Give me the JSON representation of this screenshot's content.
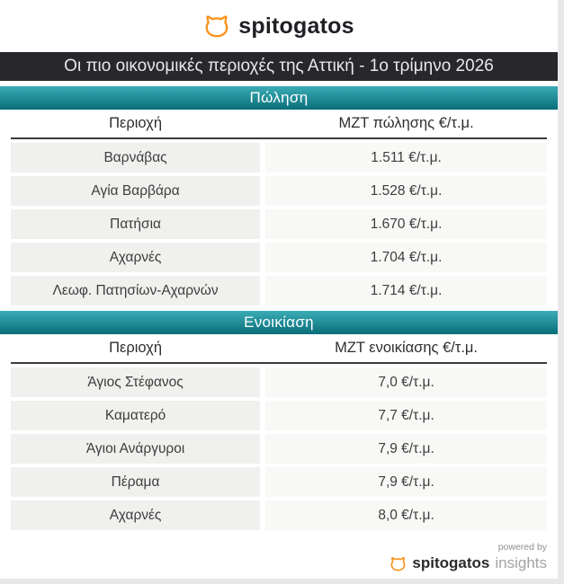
{
  "header": {
    "brand": "spitogatos"
  },
  "title_bar": {
    "text": "Οι πιο οικονομικές περιοχές της Αττική - 1ο τρίμηνο 2026"
  },
  "chart_data": [
    {
      "type": "table",
      "title": "Πώληση",
      "columns": [
        "Περιοχή",
        "ΜΖΤ πώλησης €/τ.μ."
      ],
      "rows": [
        [
          "Βαρνάβας",
          "1.511 €/τ.μ."
        ],
        [
          "Αγία Βαρβάρα",
          "1.528 €/τ.μ."
        ],
        [
          "Πατήσια",
          "1.670 €/τ.μ."
        ],
        [
          "Αχαρνές",
          "1.704 €/τ.μ."
        ],
        [
          "Λεωφ. Πατησίων-Αχαρνών",
          "1.714 €/τ.μ."
        ]
      ]
    },
    {
      "type": "table",
      "title": "Ενοικίαση",
      "columns": [
        "Περιοχή",
        "ΜΖΤ ενοικίασης €/τ.μ."
      ],
      "rows": [
        [
          "Άγιος Στέφανος",
          "7,0 €/τ.μ."
        ],
        [
          "Καματερό",
          "7,7 €/τ.μ."
        ],
        [
          "Άγιοι Ανάργυροι",
          "7,9 €/τ.μ."
        ],
        [
          "Πέραμα",
          "7,9 €/τ.μ."
        ],
        [
          "Αχαρνές",
          "8,0 €/τ.μ."
        ]
      ]
    }
  ],
  "footer": {
    "powered_by": "powered by",
    "brand": "spitogatos",
    "suffix": "insights"
  },
  "icons": {
    "brand_logo": "cat-icon"
  },
  "colors": {
    "orange": "#F7941D",
    "dark_bar": "#28282C",
    "teal_top": "#3AACB5",
    "teal_bottom": "#0A6E7A",
    "cell_left": "#F0F0EE",
    "cell_right": "#F8F8F6",
    "text": "#3D3D3D",
    "page_bg": "#E8E8EA"
  }
}
